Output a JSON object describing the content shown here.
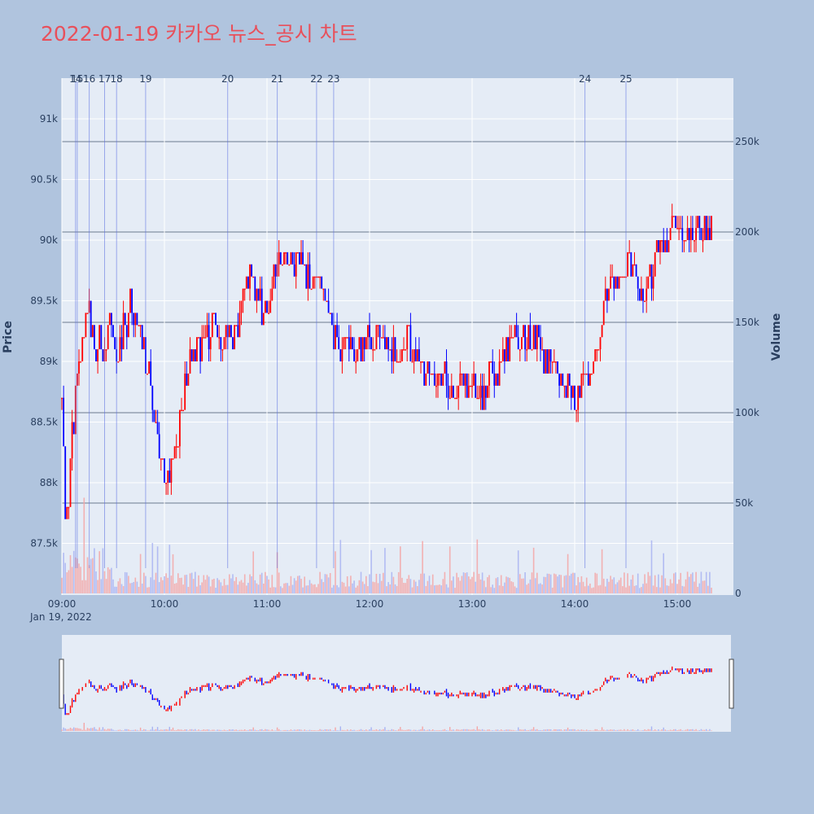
{
  "title": "2022-01-19 카카오 뉴스_공시 차트",
  "colors": {
    "background": "#b0c4de",
    "plot_bg": "#e5ecf6",
    "up": "#ff0000",
    "down": "#0000ff",
    "title": "#e8505b",
    "axis_text": "#2a3f5f"
  },
  "chart_data": {
    "type": "candlestick",
    "x_axis": {
      "tick_labels": [
        "09:00",
        "10:00",
        "11:00",
        "12:00",
        "13:00",
        "14:00",
        "15:00"
      ],
      "date_label": "Jan 19, 2022"
    },
    "price_axis": {
      "title": "Price",
      "tick_labels": [
        "87.5k",
        "88k",
        "88.5k",
        "89k",
        "89.5k",
        "90k",
        "90.5k",
        "91k"
      ],
      "range": [
        87100,
        91400
      ]
    },
    "volume_axis": {
      "title": "Volume",
      "tick_labels": [
        "0",
        "50k",
        "100k",
        "150k",
        "200k",
        "250k"
      ],
      "range": [
        0,
        250000
      ]
    },
    "news_markers": [
      {
        "label": "14",
        "time": "09:08"
      },
      {
        "label": "15",
        "time": "09:09"
      },
      {
        "label": "16",
        "time": "09:16"
      },
      {
        "label": "17",
        "time": "09:25"
      },
      {
        "label": "18",
        "time": "09:32"
      },
      {
        "label": "19",
        "time": "09:49"
      },
      {
        "label": "20",
        "time": "10:37"
      },
      {
        "label": "21",
        "time": "11:06"
      },
      {
        "label": "22",
        "time": "11:29"
      },
      {
        "label": "23",
        "time": "11:39"
      },
      {
        "label": "24",
        "time": "14:06"
      },
      {
        "label": "25",
        "time": "14:30"
      }
    ],
    "price_path": [
      [
        "09:00",
        88700
      ],
      [
        "09:02",
        87700
      ],
      [
        "09:04",
        87900
      ],
      [
        "09:06",
        88400
      ],
      [
        "09:08",
        88700
      ],
      [
        "09:10",
        88900
      ],
      [
        "09:13",
        89300
      ],
      [
        "09:16",
        89500
      ],
      [
        "09:19",
        89000
      ],
      [
        "09:22",
        89200
      ],
      [
        "09:25",
        89100
      ],
      [
        "09:28",
        89300
      ],
      [
        "09:31",
        89000
      ],
      [
        "09:34",
        89100
      ],
      [
        "09:37",
        89300
      ],
      [
        "09:40",
        89500
      ],
      [
        "09:43",
        89400
      ],
      [
        "09:46",
        89200
      ],
      [
        "09:49",
        89000
      ],
      [
        "09:52",
        88800
      ],
      [
        "09:55",
        88500
      ],
      [
        "09:58",
        88200
      ],
      [
        "10:01",
        88000
      ],
      [
        "10:04",
        88100
      ],
      [
        "10:07",
        88300
      ],
      [
        "10:10",
        88600
      ],
      [
        "10:13",
        88900
      ],
      [
        "10:16",
        89100
      ],
      [
        "10:19",
        89200
      ],
      [
        "10:22",
        89100
      ],
      [
        "10:25",
        89200
      ],
      [
        "10:28",
        89300
      ],
      [
        "10:31",
        89200
      ],
      [
        "10:34",
        89100
      ],
      [
        "10:37",
        89200
      ],
      [
        "10:40",
        89100
      ],
      [
        "10:43",
        89300
      ],
      [
        "10:46",
        89500
      ],
      [
        "10:49",
        89700
      ],
      [
        "10:52",
        89600
      ],
      [
        "10:55",
        89500
      ],
      [
        "10:58",
        89400
      ],
      [
        "11:01",
        89500
      ],
      [
        "11:04",
        89700
      ],
      [
        "11:07",
        89900
      ],
      [
        "11:10",
        89900
      ],
      [
        "11:13",
        89900
      ],
      [
        "11:16",
        89800
      ],
      [
        "11:19",
        89800
      ],
      [
        "11:22",
        89700
      ],
      [
        "11:25",
        89700
      ],
      [
        "11:28",
        89700
      ],
      [
        "11:31",
        89600
      ],
      [
        "11:34",
        89500
      ],
      [
        "11:37",
        89400
      ],
      [
        "11:40",
        89200
      ],
      [
        "11:43",
        89100
      ],
      [
        "11:46",
        89100
      ],
      [
        "11:49",
        89200
      ],
      [
        "11:52",
        89100
      ],
      [
        "11:55",
        89100
      ],
      [
        "11:58",
        89200
      ],
      [
        "12:01",
        89100
      ],
      [
        "12:04",
        89200
      ],
      [
        "12:07",
        89100
      ],
      [
        "12:10",
        89200
      ],
      [
        "12:13",
        89100
      ],
      [
        "12:16",
        89000
      ],
      [
        "12:19",
        89100
      ],
      [
        "12:22",
        89200
      ],
      [
        "12:25",
        89100
      ],
      [
        "12:28",
        89000
      ],
      [
        "12:31",
        88900
      ],
      [
        "12:34",
        88900
      ],
      [
        "12:37",
        88900
      ],
      [
        "12:40",
        88800
      ],
      [
        "12:43",
        88900
      ],
      [
        "12:46",
        88800
      ],
      [
        "12:49",
        88700
      ],
      [
        "12:52",
        88800
      ],
      [
        "12:55",
        88800
      ],
      [
        "12:58",
        88800
      ],
      [
        "13:01",
        88800
      ],
      [
        "13:04",
        88800
      ],
      [
        "13:07",
        88700
      ],
      [
        "13:10",
        88900
      ],
      [
        "13:13",
        88800
      ],
      [
        "13:16",
        89000
      ],
      [
        "13:19",
        89100
      ],
      [
        "13:22",
        89200
      ],
      [
        "13:25",
        89300
      ],
      [
        "13:28",
        89100
      ],
      [
        "13:31",
        89200
      ],
      [
        "13:34",
        89200
      ],
      [
        "13:37",
        89200
      ],
      [
        "13:40",
        89100
      ],
      [
        "13:43",
        89000
      ],
      [
        "13:46",
        89000
      ],
      [
        "13:49",
        88900
      ],
      [
        "13:52",
        88800
      ],
      [
        "13:55",
        88800
      ],
      [
        "13:58",
        88800
      ],
      [
        "14:01",
        88700
      ],
      [
        "14:04",
        88800
      ],
      [
        "14:07",
        88900
      ],
      [
        "14:10",
        89000
      ],
      [
        "14:13",
        89200
      ],
      [
        "14:16",
        89400
      ],
      [
        "14:19",
        89500
      ],
      [
        "14:22",
        89600
      ],
      [
        "14:25",
        89700
      ],
      [
        "14:28",
        89700
      ],
      [
        "14:31",
        89800
      ],
      [
        "14:34",
        89700
      ],
      [
        "14:37",
        89600
      ],
      [
        "14:40",
        89600
      ],
      [
        "14:43",
        89700
      ],
      [
        "14:46",
        89800
      ],
      [
        "14:49",
        89900
      ],
      [
        "14:52",
        89900
      ],
      [
        "14:55",
        90000
      ],
      [
        "14:58",
        90100
      ],
      [
        "15:01",
        90000
      ],
      [
        "15:04",
        90100
      ],
      [
        "15:08",
        90100
      ]
    ]
  }
}
